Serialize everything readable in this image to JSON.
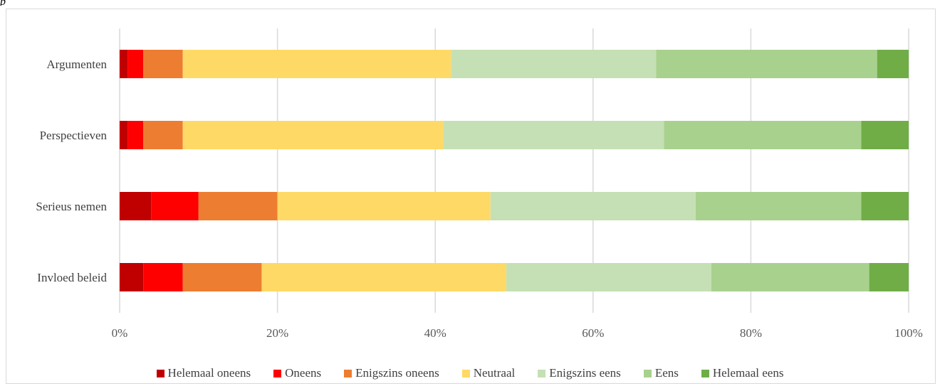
{
  "page": {
    "top_mark": "p"
  },
  "chart_data": {
    "type": "bar",
    "orientation": "horizontal",
    "stacked": "percent",
    "title": "",
    "xlabel": "",
    "ylabel": "",
    "categories": [
      "Argumenten",
      "Perspectieven",
      "Serieus nemen",
      "Invloed beleid"
    ],
    "xlim": [
      0,
      100
    ],
    "x_ticks": [
      "0%",
      "20%",
      "40%",
      "60%",
      "80%",
      "100%"
    ],
    "x_tick_values": [
      0,
      20,
      40,
      60,
      80,
      100
    ],
    "grid": "vertical",
    "legend_position": "bottom",
    "series": [
      {
        "name": "Helemaal oneens",
        "color": "#c00000",
        "values": [
          1,
          1,
          4,
          3
        ]
      },
      {
        "name": "Oneens",
        "color": "#ff0000",
        "values": [
          2,
          2,
          6,
          5
        ]
      },
      {
        "name": "Enigszins oneens",
        "color": "#ed7d31",
        "values": [
          5,
          5,
          10,
          10
        ]
      },
      {
        "name": "Neutraal",
        "color": "#ffd966",
        "values": [
          34,
          33,
          27,
          31
        ]
      },
      {
        "name": "Enigszins eens",
        "color": "#c5e0b4",
        "values": [
          26,
          28,
          26,
          26
        ]
      },
      {
        "name": "Eens",
        "color": "#a9d18e",
        "values": [
          28,
          25,
          21,
          20
        ]
      },
      {
        "name": "Helemaal eens",
        "color": "#70ad47",
        "values": [
          4,
          6,
          6,
          5
        ]
      }
    ]
  }
}
